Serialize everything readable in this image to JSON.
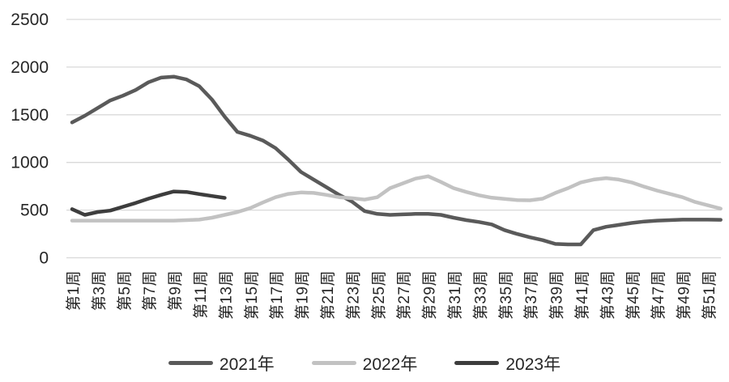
{
  "chart_data": {
    "type": "line",
    "title": "",
    "legend_position": "bottom",
    "grid": "horizontal-only",
    "colors": {
      "gridline": "#d9d9d9",
      "axis_text": "#262626",
      "background": "#ffffff"
    },
    "y_axis": {
      "ticks": [
        0,
        500,
        1000,
        1500,
        2000,
        2500
      ],
      "range": [
        0,
        2500
      ]
    },
    "x_axis": {
      "total_weeks": 52,
      "tick_weeks": [
        1,
        3,
        5,
        7,
        9,
        11,
        13,
        15,
        17,
        19,
        21,
        23,
        25,
        27,
        29,
        31,
        33,
        35,
        37,
        39,
        41,
        43,
        45,
        47,
        49,
        51
      ],
      "tick_labels": [
        "第1周",
        "第3周",
        "第5周",
        "第7周",
        "第9周",
        "第11周",
        "第13周",
        "第15周",
        "第17周",
        "第19周",
        "第21周",
        "第23周",
        "第25周",
        "第27周",
        "第29周",
        "第31周",
        "第33周",
        "第35周",
        "第37周",
        "第39周",
        "第41周",
        "第43周",
        "第45周",
        "第47周",
        "第49周",
        "第51周"
      ]
    },
    "series": [
      {
        "name": "2021年",
        "color": "#5a5a5a",
        "start_week": 1,
        "values": [
          1420,
          1490,
          1570,
          1650,
          1700,
          1760,
          1840,
          1890,
          1900,
          1870,
          1800,
          1660,
          1480,
          1320,
          1280,
          1230,
          1150,
          1030,
          900,
          820,
          740,
          660,
          590,
          490,
          460,
          450,
          455,
          460,
          460,
          450,
          420,
          395,
          375,
          350,
          290,
          250,
          215,
          185,
          145,
          140,
          140,
          290,
          325,
          345,
          365,
          380,
          390,
          395,
          400,
          400,
          400,
          398
        ]
      },
      {
        "name": "2022年",
        "color": "#c2c2c2",
        "start_week": 1,
        "values": [
          390,
          390,
          390,
          390,
          390,
          390,
          390,
          390,
          390,
          395,
          400,
          420,
          450,
          480,
          520,
          580,
          635,
          670,
          685,
          680,
          660,
          635,
          625,
          610,
          635,
          730,
          780,
          830,
          855,
          795,
          730,
          690,
          655,
          630,
          618,
          605,
          603,
          620,
          680,
          730,
          790,
          820,
          835,
          820,
          790,
          745,
          705,
          670,
          635,
          585,
          550,
          515
        ]
      },
      {
        "name": "2023年",
        "color": "#3d3d3d",
        "start_week": 1,
        "values": [
          510,
          450,
          480,
          495,
          535,
          575,
          620,
          660,
          695,
          690,
          668,
          648,
          628
        ]
      }
    ]
  }
}
